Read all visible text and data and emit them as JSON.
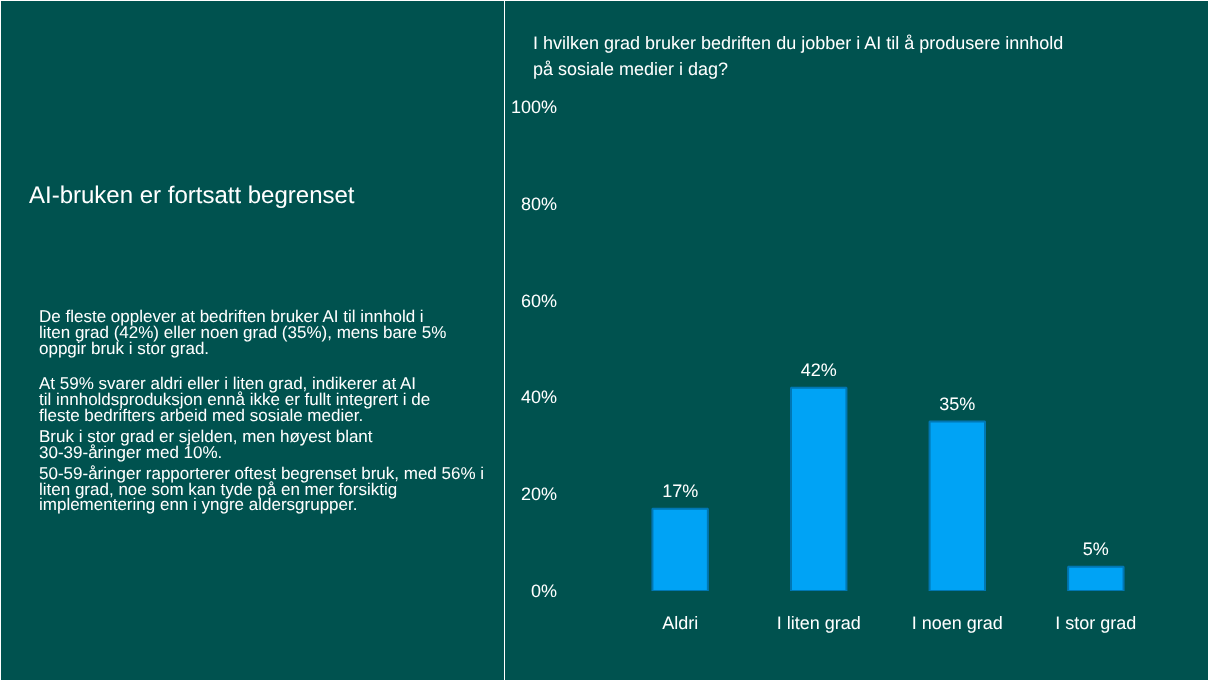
{
  "chart_data": {
    "type": "bar",
    "title": "I hvilken grad bruker bedriften du jobber i AI til å produsere innhold på sosiale medier i dag?",
    "categories": [
      "Aldri",
      "I liten grad",
      "I noen grad",
      "I stor grad"
    ],
    "values": [
      17,
      42,
      35,
      5
    ],
    "color": "#00a3f5",
    "value_labels": [
      "17%",
      "42%",
      "35%",
      "5%"
    ],
    "ylim": [
      0,
      100
    ],
    "yticks": [
      {
        "value": 0,
        "label": "0%"
      },
      {
        "value": 20,
        "label": "20%"
      },
      {
        "value": 40,
        "label": "40%"
      },
      {
        "value": 60,
        "label": "60%"
      },
      {
        "value": 80,
        "label": "80%"
      },
      {
        "value": 100,
        "label": "100%"
      }
    ],
    "grid": false,
    "annotations": [
      "AI-bruken er fortsatt begrenset",
      "De fleste opplever at bedriften bruker AI til innhold i liten grad (42%) eller noen grad (35%), mens bare 5% oppgir bruk i stor grad.",
      "At 59% svarer aldri eller i liten grad, indikerer at AI til innholdsproduksjon ennå ikke er fullt integrert i de fleste bedrifters arbeid med sosiale medier.",
      "Bruk i stor grad er sjelden, men høyest blant 30-39-åringer med 10%.",
      "50-59-åringer rapporterer oftest begrenset bruk, med 56% i liten grad, noe som kan tyde på en mer forsiktig implementering enn i yngre aldersgrupper."
    ]
  }
}
